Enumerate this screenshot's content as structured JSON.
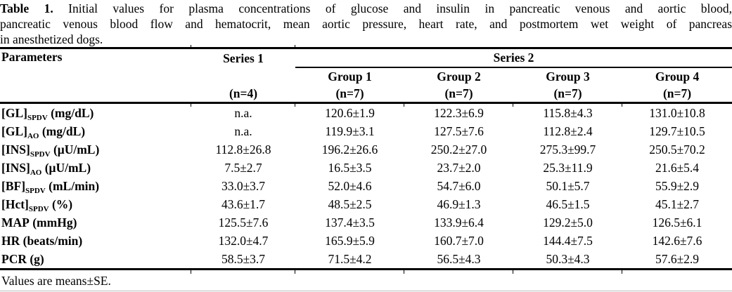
{
  "caption": {
    "label": "Table 1.",
    "line1": "Initial values for plasma concentrations of glucose and insulin in pancreatic venous and aortic blood,",
    "line2": "pancreatic venous blood flow and hematocrit, mean aortic pressure, heart rate, and postmortem wet weight of pancreas",
    "line3": "in anesthetized dogs."
  },
  "table": {
    "header": {
      "parameters": "Parameters",
      "series1": {
        "label": "Series 1",
        "n": "(n=4)"
      },
      "series2": {
        "label": "Series 2",
        "groups": [
          {
            "label": "Group 1",
            "n": "(n=7)"
          },
          {
            "label": "Group 2",
            "n": "(n=7)"
          },
          {
            "label": "Group 3",
            "n": "(n=7)"
          },
          {
            "label": "Group 4",
            "n": "(n=7)"
          }
        ]
      }
    },
    "rows": [
      {
        "param": {
          "base": "[GL]",
          "sub": "SPDV",
          "unit": " (mg/dL)"
        },
        "values": [
          "n.a.",
          "120.6±1.9",
          "122.3±6.9",
          "115.8±4.3",
          "131.0±10.8"
        ]
      },
      {
        "param": {
          "base": "[GL]",
          "sub": "AO",
          "unit": " (mg/dL)"
        },
        "values": [
          "n.a.",
          "119.9±3.1",
          "127.5±7.6",
          "112.8±2.4",
          "129.7±10.5"
        ]
      },
      {
        "param": {
          "base": "[INS]",
          "sub": "SPDV",
          "unit": " (μU/mL)"
        },
        "values": [
          "112.8±26.8",
          "196.2±26.6",
          "250.2±27.0",
          "275.3±99.7",
          "250.5±70.2"
        ]
      },
      {
        "param": {
          "base": "[INS]",
          "sub": "AO",
          "unit": " (μU/mL)"
        },
        "values": [
          "7.5±2.7",
          "16.5±3.5",
          "23.7±2.0",
          "25.3±11.9",
          "21.6±5.4"
        ]
      },
      {
        "param": {
          "base": "[BF]",
          "sub": "SPDV",
          "unit": " (mL/min)"
        },
        "values": [
          "33.0±3.7",
          "52.0±4.6",
          "54.7±6.0",
          "50.1±5.7",
          "55.9±2.9"
        ]
      },
      {
        "param": {
          "base": "[Hct]",
          "sub": "SPDV",
          "unit": " (%)"
        },
        "values": [
          "43.6±1.7",
          "48.5±2.5",
          "46.9±1.3",
          "46.5±1.5",
          "45.1±2.7"
        ]
      },
      {
        "param": {
          "base": "MAP",
          "sub": "",
          "unit": " (mmHg)"
        },
        "values": [
          "125.5±7.6",
          "137.4±3.5",
          "133.9±6.4",
          "129.2±5.0",
          "126.5±6.1"
        ]
      },
      {
        "param": {
          "base": "HR",
          "sub": "",
          "unit": " (beats/min)"
        },
        "values": [
          "132.0±4.7",
          "165.9±5.9",
          "160.7±7.0",
          "144.4±7.5",
          "142.6±7.6"
        ]
      },
      {
        "param": {
          "base": "PCR",
          "sub": "",
          "unit": " (g)"
        },
        "values": [
          "58.5±3.7",
          "71.5±4.2",
          "56.5±4.3",
          "50.3±4.3",
          "57.6±2.9"
        ]
      }
    ]
  },
  "footnote": "Values are means±SE.",
  "colors": {
    "text": "#000000",
    "background": "#ffffff",
    "rule": "#000000"
  }
}
